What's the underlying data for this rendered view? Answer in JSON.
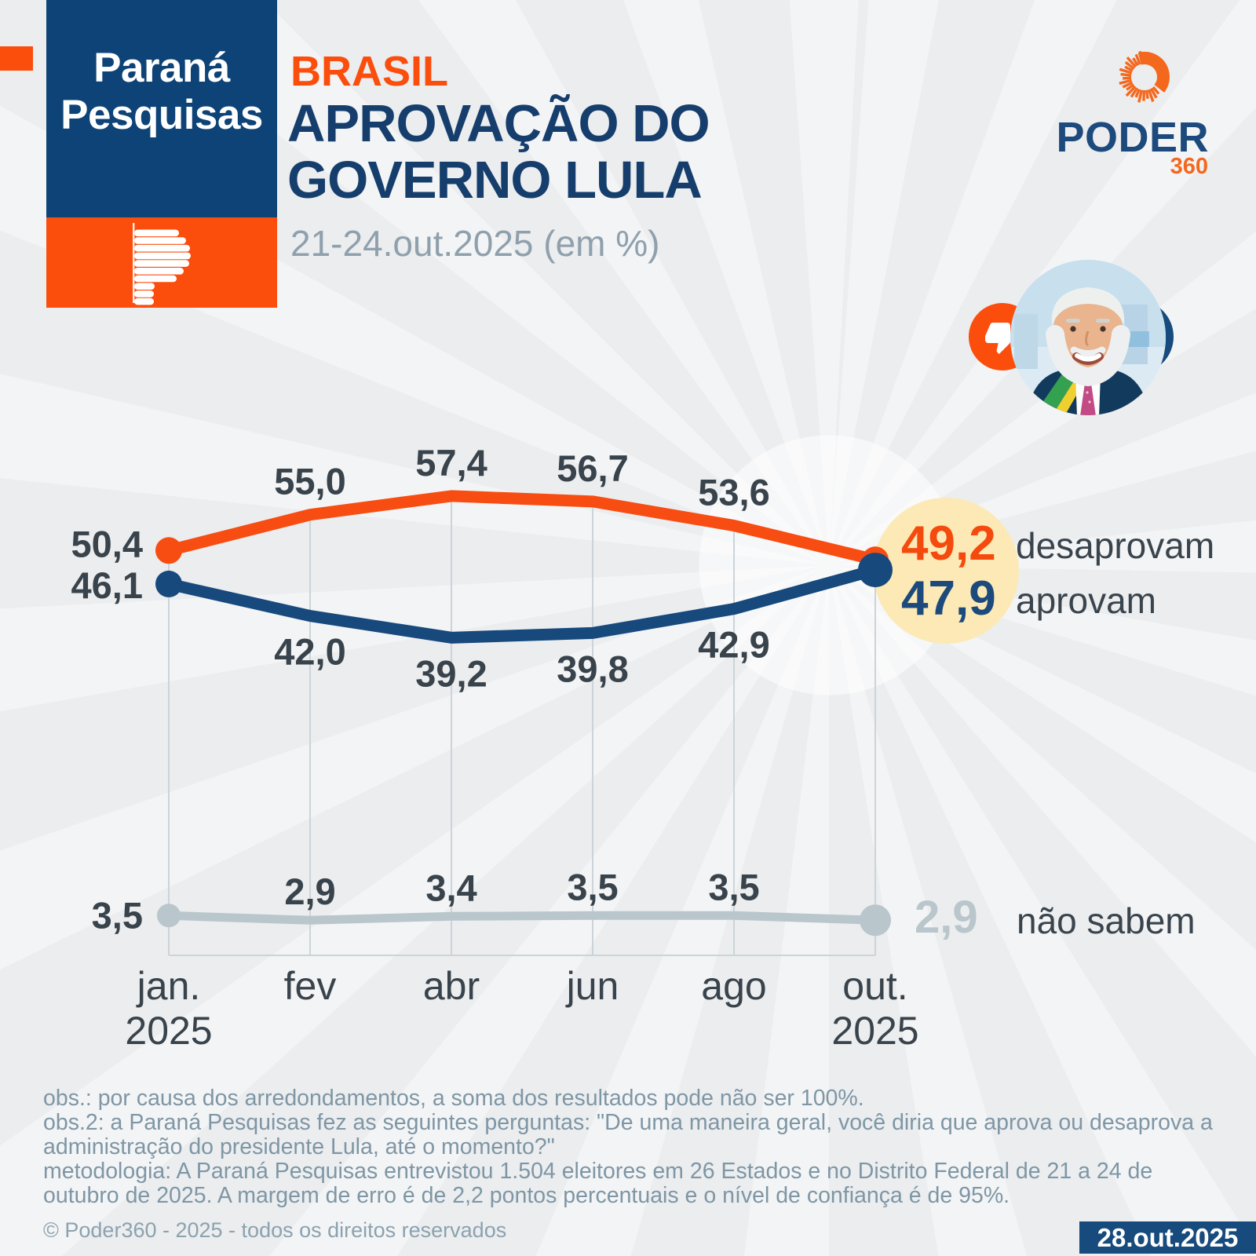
{
  "brand_left": {
    "name_line1": "Paraná",
    "name_line2": "Pesquisas",
    "box_blue": "#0d4377",
    "box_orange": "#fb4e0d"
  },
  "brand_right": {
    "wordmark": "PODER",
    "suffix": "360",
    "navy": "#1c4a7c",
    "orange": "#f4681e"
  },
  "header": {
    "kicker": "BRASIL",
    "title_line1": "APROVAÇÃO DO",
    "title_line2": "GOVERNO LULA",
    "subtitle": "21-24.out.2025 (em %)"
  },
  "icons": {
    "thumbs_down": "white thumbs-down glyph on orange circle",
    "thumbs_up": "white thumbs-up glyph on navy circle",
    "starburst": "orange radial-rays Poder360 mark",
    "lula_portrait": "circular photo of president Lula"
  },
  "chart_data": {
    "type": "line",
    "title": "Aprovação do governo Lula (em %)",
    "xlabel": "",
    "ylabel": "%",
    "ylim": [
      0,
      60
    ],
    "grid": "vertical",
    "legend_position": "right",
    "x_labels": [
      "jan.",
      "fev",
      "abr",
      "jun",
      "ago",
      "out."
    ],
    "x_sublabels": [
      "2025",
      "",
      "",
      "",
      "",
      "2025"
    ],
    "series": [
      {
        "name": "desaprovam",
        "color": "#f84d12",
        "values": [
          50.4,
          55.0,
          57.4,
          56.7,
          53.6,
          49.2
        ]
      },
      {
        "name": "aprovam",
        "color": "#17497d",
        "values": [
          46.1,
          42.0,
          39.2,
          39.8,
          42.9,
          47.9
        ]
      },
      {
        "name": "não sabem",
        "color": "#b9c6cc",
        "values": [
          3.5,
          2.9,
          3.4,
          3.5,
          3.5,
          2.9
        ]
      }
    ],
    "highlight_fill": "#fce9b5",
    "label_color": "#39434b",
    "grid_color": "#ccd4d9"
  },
  "legend": {
    "items": [
      {
        "value": "49,2",
        "label": "desaprovam",
        "value_color": "#f54a0e"
      },
      {
        "value": "47,9",
        "label": "aprovam",
        "value_color": "#1c4a7c"
      },
      {
        "value": "2,9",
        "label": "não sabem",
        "value_color": "#b9c6cc"
      }
    ]
  },
  "notes": {
    "obs1": "obs.: por causa dos arredondamentos, a soma dos resultados pode não ser 100%.",
    "obs2": "obs.2: a Paraná Pesquisas fez as seguintes perguntas: \"De uma maneira geral, você diria que aprova ou desaprova a administração do presidente Lula, até o momento?\"",
    "metodologia": "metodologia: A Paraná Pesquisas entrevistou 1.504 eleitores em 26 Estados e no Distrito Federal de 21 a 24 de outubro de 2025. A margem de erro é de 2,2 pontos percentuais e o nível de confiança é de 95%."
  },
  "footer": {
    "copyright": "© Poder360 - 2025 - todos os direitos reservados",
    "date_badge": "28.out.2025"
  }
}
